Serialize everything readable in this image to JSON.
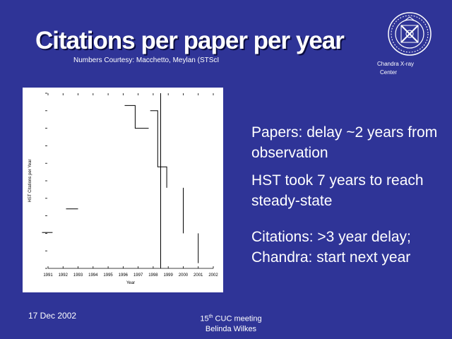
{
  "slide": {
    "title": "Citations per paper per year",
    "subtitle": "Numbers Courtesy: Macchetto, Meylan (STScI",
    "logo_caption_line1": "Chandra X-ray",
    "logo_caption_line2": "Center",
    "logo_icon": "chandra-x-ray-center-seal"
  },
  "bullets": [
    "Papers: delay ~2 years from observation",
    "HST took 7 years to reach steady-state",
    "Citations: >3 year delay; Chandra: start next year"
  ],
  "footer": {
    "date": "17 Dec 2002",
    "meeting_num": "15",
    "meeting_sup": "th",
    "meeting_rest": " CUC meeting",
    "author": "Belinda Wilkes"
  },
  "colors": {
    "background": "#2f3497",
    "text": "#ffffff",
    "chart_background": "#ffffff",
    "chart_ink": "#000000"
  },
  "chart_data": {
    "type": "line",
    "title": "",
    "xlabel": "Year",
    "ylabel": "HST Citations per Year",
    "x_ticks": [
      "1991",
      "1992",
      "1993",
      "1994",
      "1995",
      "1996",
      "1997",
      "1998",
      "1999",
      "2000",
      "2001",
      "2002"
    ],
    "xlim": [
      1991,
      2002
    ],
    "ylim": [
      0,
      10
    ],
    "grid": false,
    "series": [
      {
        "x": [
          1990.6,
          1991.3
        ],
        "y": [
          2.05,
          2.05
        ]
      },
      {
        "x": [
          1992.2,
          1993.0
        ],
        "y": [
          3.4,
          3.4
        ]
      },
      {
        "x": [
          1996.1,
          1996.8,
          1996.8,
          1997.7
        ],
        "y": [
          9.3,
          9.3,
          8.0,
          8.0
        ]
      },
      {
        "x": [
          1997.8,
          1998.3,
          1998.3,
          1998.9,
          1998.9
        ],
        "y": [
          9.0,
          9.0,
          5.8,
          5.8,
          4.6
        ]
      },
      {
        "x": [
          1998.5,
          1998.5
        ],
        "y": [
          10.0,
          0.0
        ]
      },
      {
        "x": [
          2000.0,
          2000.0
        ],
        "y": [
          4.6,
          2.0
        ]
      },
      {
        "x": [
          2001.0,
          2001.0
        ],
        "y": [
          2.0,
          0.3
        ]
      }
    ]
  }
}
